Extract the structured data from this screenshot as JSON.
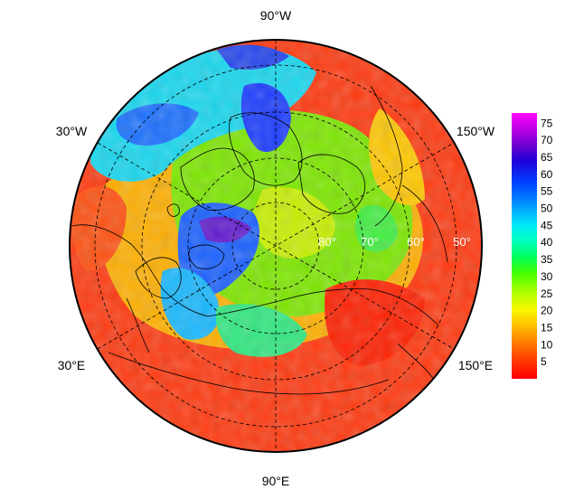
{
  "map": {
    "projection": "north polar stereographic",
    "longitude_labels": [
      {
        "text": "90°W",
        "lon": -90
      },
      {
        "text": "150°W",
        "lon": -150
      },
      {
        "text": "150°E",
        "lon": 150
      },
      {
        "text": "90°E",
        "lon": 90
      },
      {
        "text": "30°E",
        "lon": 30
      },
      {
        "text": "30°W",
        "lon": -30
      }
    ],
    "latitude_labels": [
      {
        "text": "80°",
        "lat": 80
      },
      {
        "text": "70°",
        "lat": 70
      },
      {
        "text": "60°",
        "lat": 60
      },
      {
        "text": "50°",
        "lat": 50
      }
    ],
    "graticule": {
      "style": "dashed",
      "latitudes": [
        80,
        70,
        60,
        50
      ]
    },
    "field_colors_by_region": {
      "greenland_canada_high": "#1a3cff",
      "barents_kara_high": "#5a1ad0",
      "central_arctic": "#a0f000",
      "mid_latitudes_low": "#ff2a00"
    }
  },
  "colorbar": {
    "ticks": [
      "75",
      "70",
      "65",
      "60",
      "55",
      "50",
      "45",
      "40",
      "35",
      "30",
      "25",
      "20",
      "15",
      "10",
      "5"
    ],
    "min": 0,
    "max": 78,
    "colors": [
      "#ff0000",
      "#ff3000",
      "#ff6a00",
      "#ffa000",
      "#ffd800",
      "#f0ff00",
      "#a8ff00",
      "#50ff00",
      "#00ff40",
      "#00ffa0",
      "#00f0f0",
      "#00a8ff",
      "#0050ff",
      "#1a10e0",
      "#6010d0",
      "#b000e0",
      "#ff00ff"
    ]
  }
}
